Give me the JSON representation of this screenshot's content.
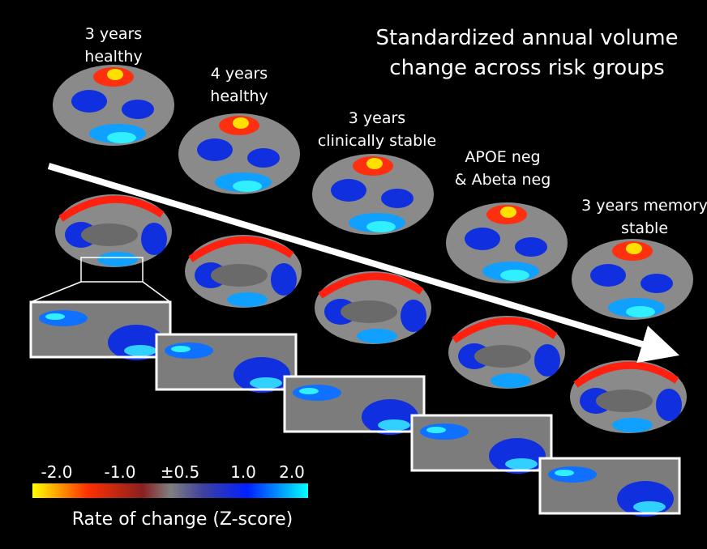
{
  "title": [
    "Standardized annual volume",
    "change across risk groups"
  ],
  "groups": [
    {
      "label": [
        "3 years",
        "healthy"
      ]
    },
    {
      "label": [
        "4 years",
        "healthy"
      ]
    },
    {
      "label": [
        "3 years",
        "clinically stable"
      ]
    },
    {
      "label": [
        "APOE neg",
        "& Abeta neg"
      ]
    },
    {
      "label": [
        "3 years memory",
        "stable"
      ]
    }
  ],
  "colorbar": {
    "tick_labels": [
      "-2.0",
      "-1.0",
      "±0.5",
      "1.0",
      "2.0"
    ],
    "label": "Rate of change (Z-score)"
  }
}
